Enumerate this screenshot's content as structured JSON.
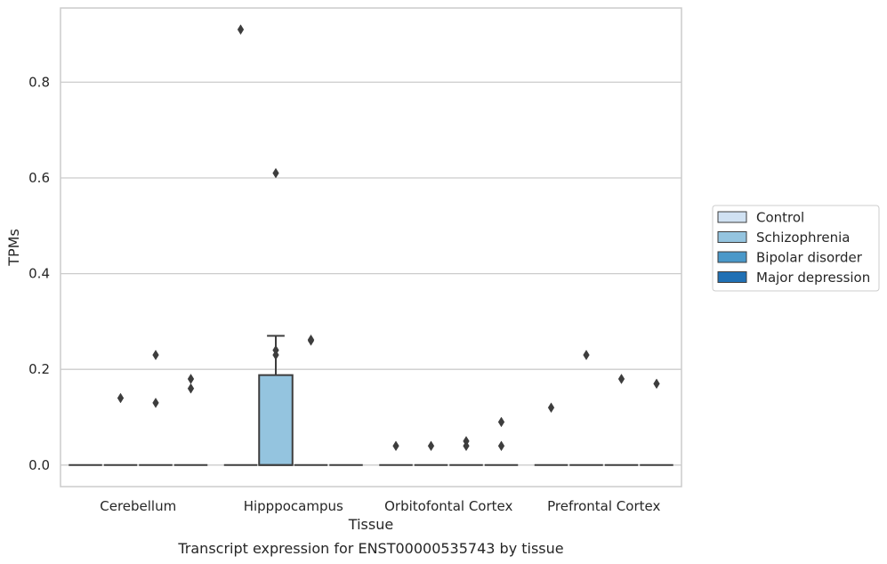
{
  "chart_data": {
    "type": "box",
    "xlabel": "Tissue",
    "ylabel": "TPMs",
    "caption": "Transcript expression for ENST00000535743 by tissue",
    "ylim": [
      -0.045,
      0.955
    ],
    "yticks": [
      0.0,
      0.2,
      0.4,
      0.6,
      0.8
    ],
    "ytick_labels": [
      "0.0",
      "0.2",
      "0.4",
      "0.6",
      "0.8"
    ],
    "grid": "horizontal",
    "legend_position": "right",
    "categories": [
      "Cerebellum",
      "Hipppocampus",
      "Orbitofontal Cortex",
      "Prefrontal Cortex"
    ],
    "series": [
      {
        "name": "Control",
        "color": "#d0e1f2"
      },
      {
        "name": "Schizophrenia",
        "color": "#94c4df"
      },
      {
        "name": "Bipolar disorder",
        "color": "#4a98c9"
      },
      {
        "name": "Major depression",
        "color": "#2070b4"
      }
    ],
    "boxes": [
      {
        "category": 0,
        "series": 0,
        "q1": 0,
        "median": 0,
        "q3": 0,
        "whislo": 0,
        "whishi": 0,
        "fliers": []
      },
      {
        "category": 0,
        "series": 1,
        "q1": 0,
        "median": 0,
        "q3": 0,
        "whislo": 0,
        "whishi": 0,
        "fliers": [
          0.14
        ]
      },
      {
        "category": 0,
        "series": 2,
        "q1": 0,
        "median": 0,
        "q3": 0,
        "whislo": 0,
        "whishi": 0,
        "fliers": [
          0.23,
          0.13
        ]
      },
      {
        "category": 0,
        "series": 3,
        "q1": 0,
        "median": 0,
        "q3": 0,
        "whislo": 0,
        "whishi": 0,
        "fliers": [
          0.18,
          0.16
        ]
      },
      {
        "category": 1,
        "series": 0,
        "q1": 0,
        "median": 0,
        "q3": 0,
        "whislo": 0,
        "whishi": 0,
        "fliers": [
          0.91
        ]
      },
      {
        "category": 1,
        "series": 1,
        "q1": 0,
        "median": 0,
        "q3": 0.188,
        "whislo": 0,
        "whishi": 0.27,
        "fliers": [
          0.61,
          0.24,
          0.23
        ]
      },
      {
        "category": 1,
        "series": 2,
        "q1": 0,
        "median": 0,
        "q3": 0,
        "whislo": 0,
        "whishi": 0,
        "fliers": [
          0.26,
          0.262
        ]
      },
      {
        "category": 1,
        "series": 3,
        "q1": 0,
        "median": 0,
        "q3": 0,
        "whislo": 0,
        "whishi": 0,
        "fliers": []
      },
      {
        "category": 2,
        "series": 0,
        "q1": 0,
        "median": 0,
        "q3": 0,
        "whislo": 0,
        "whishi": 0,
        "fliers": [
          0.04
        ]
      },
      {
        "category": 2,
        "series": 1,
        "q1": 0,
        "median": 0,
        "q3": 0,
        "whislo": 0,
        "whishi": 0,
        "fliers": [
          0.04
        ]
      },
      {
        "category": 2,
        "series": 2,
        "q1": 0,
        "median": 0,
        "q3": 0,
        "whislo": 0,
        "whishi": 0,
        "fliers": [
          0.05,
          0.04
        ]
      },
      {
        "category": 2,
        "series": 3,
        "q1": 0,
        "median": 0,
        "q3": 0,
        "whislo": 0,
        "whishi": 0,
        "fliers": [
          0.09,
          0.04
        ]
      },
      {
        "category": 3,
        "series": 0,
        "q1": 0,
        "median": 0,
        "q3": 0,
        "whislo": 0,
        "whishi": 0,
        "fliers": [
          0.12
        ]
      },
      {
        "category": 3,
        "series": 1,
        "q1": 0,
        "median": 0,
        "q3": 0,
        "whislo": 0,
        "whishi": 0,
        "fliers": [
          0.23
        ]
      },
      {
        "category": 3,
        "series": 2,
        "q1": 0,
        "median": 0,
        "q3": 0,
        "whislo": 0,
        "whishi": 0,
        "fliers": [
          0.18
        ]
      },
      {
        "category": 3,
        "series": 3,
        "q1": 0,
        "median": 0,
        "q3": 0,
        "whislo": 0,
        "whishi": 0,
        "fliers": [
          0.17
        ]
      }
    ]
  }
}
